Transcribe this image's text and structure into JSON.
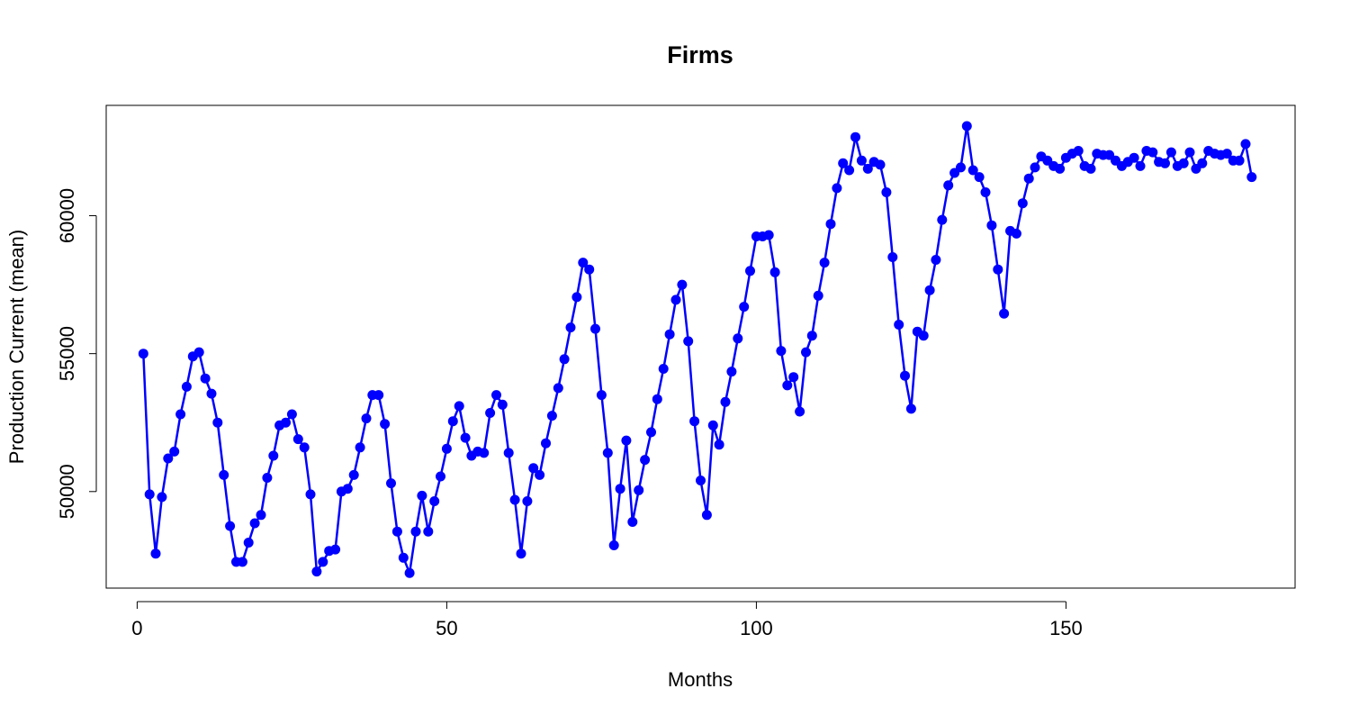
{
  "chart_data": {
    "type": "line",
    "title": "Firms",
    "xlabel": "Months",
    "ylabel": "Production Current (mean)",
    "xlim": [
      -5,
      187
    ],
    "ylim": [
      46500,
      64000
    ],
    "x_ticks": [
      0,
      50,
      100,
      150
    ],
    "x_tick_labels": [
      "0",
      "50",
      "100",
      "150"
    ],
    "y_ticks": [
      50000,
      55000,
      60000
    ],
    "y_tick_labels": [
      "50000",
      "55000",
      "60000"
    ],
    "grid": false,
    "legend": "none",
    "series_color": "#0000FF",
    "series": [
      {
        "x": [
          1,
          2,
          3,
          4,
          5,
          6,
          7,
          8,
          9,
          10,
          11,
          12,
          13,
          14,
          15,
          16,
          17,
          18,
          19,
          20,
          21,
          22,
          23,
          24,
          25,
          26,
          27,
          28,
          29,
          30,
          31,
          32,
          33,
          34,
          35,
          36,
          37,
          38,
          39,
          40,
          41,
          42,
          43,
          44,
          45,
          46,
          47,
          48,
          49,
          50,
          51,
          52,
          53,
          54,
          55,
          56,
          57,
          58,
          59,
          60,
          61,
          62,
          63,
          64,
          65,
          66,
          67,
          68,
          69,
          70,
          71,
          72,
          73,
          74,
          75,
          76,
          77,
          78,
          79,
          80,
          81,
          82,
          83,
          84,
          85,
          86,
          87,
          88,
          89,
          90,
          91,
          92,
          93,
          94,
          95,
          96,
          97,
          98,
          99,
          100,
          101,
          102,
          103,
          104,
          105,
          106,
          107,
          108,
          109,
          110,
          111,
          112,
          113,
          114,
          115,
          116,
          117,
          118,
          119,
          120,
          121,
          122,
          123,
          124,
          125,
          126,
          127,
          128,
          129,
          130,
          131,
          132,
          133,
          134,
          135,
          136,
          137,
          138,
          139,
          140,
          141,
          142,
          143,
          144,
          145,
          146,
          147,
          148,
          149,
          150,
          151,
          152,
          153,
          154,
          155,
          156,
          157,
          158,
          159,
          160,
          161,
          162,
          163,
          164,
          165,
          166,
          167,
          168,
          169,
          170,
          171,
          172,
          173,
          174,
          175,
          176,
          177,
          178,
          179,
          180
        ],
        "values": [
          55000,
          49900,
          47750,
          49800,
          51200,
          51450,
          52800,
          53800,
          54900,
          55050,
          54100,
          53550,
          52500,
          50600,
          48750,
          47450,
          47450,
          48150,
          48850,
          49150,
          50500,
          51300,
          52400,
          52500,
          52800,
          51900,
          51600,
          49900,
          47100,
          47450,
          47850,
          47900,
          50000,
          50100,
          50600,
          51600,
          52650,
          53500,
          53500,
          52450,
          50300,
          48550,
          47600,
          47050,
          48550,
          49850,
          48550,
          49650,
          50550,
          51550,
          52550,
          53100,
          51950,
          51300,
          51450,
          51400,
          52850,
          53500,
          53150,
          51400,
          49700,
          47750,
          49650,
          50850,
          50600,
          51750,
          52750,
          53750,
          54800,
          55950,
          57050,
          58300,
          58050,
          55900,
          53500,
          51400,
          48050,
          50100,
          51850,
          48900,
          50050,
          51150,
          52150,
          53350,
          54450,
          55700,
          56950,
          57500,
          55450,
          52550,
          50400,
          49150,
          52400,
          51700,
          53250,
          54350,
          55550,
          56700,
          58000,
          59250,
          59250,
          59300,
          57950,
          55100,
          53850,
          54150,
          52900,
          55050,
          55650,
          57100,
          58300,
          59700,
          61000,
          61900,
          61650,
          62850,
          62000,
          61700,
          61950,
          61850,
          60850,
          58500,
          56050,
          54200,
          53000,
          55800,
          55650,
          57300,
          58400,
          59850,
          61100,
          61550,
          61750,
          63250,
          61650,
          61400,
          60850,
          59650,
          58050,
          56450,
          59450,
          59350,
          60450,
          61350,
          61750,
          62150,
          62000,
          61800,
          61700,
          62100,
          62250,
          62350,
          61800,
          61700,
          62250,
          62200,
          62200,
          62000,
          61800,
          61950,
          62100,
          61800,
          62350,
          62300,
          61950,
          61900,
          62300,
          61800,
          61900,
          62300,
          61700,
          61900,
          62350,
          62250,
          62200,
          62250,
          62000,
          62000,
          62600,
          61400
        ]
      }
    ]
  }
}
